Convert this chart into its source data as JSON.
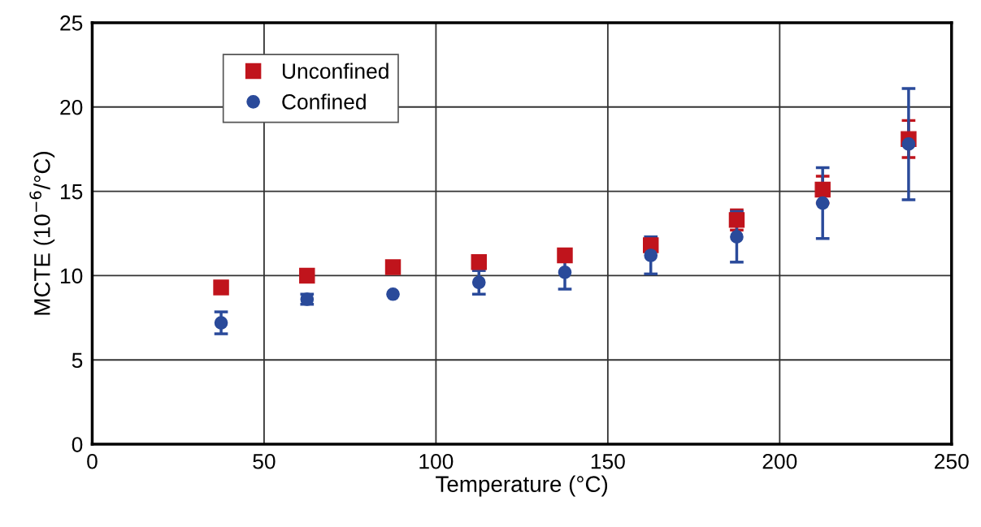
{
  "chart_data": {
    "type": "scatter",
    "xlabel": "Temperature (°C)",
    "ylabel": "MCTE (10$^{−6}$/°C)",
    "x": [
      37.5,
      62.5,
      87.5,
      112.5,
      137.5,
      162.5,
      187.5,
      212.5,
      237.5
    ],
    "series": [
      {
        "name": "Unconfined",
        "color": "#c0141c",
        "marker": "square",
        "values": [
          9.3,
          10.0,
          10.5,
          10.8,
          11.2,
          11.8,
          13.3,
          15.1,
          18.1
        ],
        "errors": [
          null,
          null,
          null,
          null,
          null,
          0.3,
          0.6,
          0.8,
          1.1
        ]
      },
      {
        "name": "Confined",
        "color": "#2a4a9a",
        "marker": "circle",
        "values": [
          7.2,
          8.6,
          8.9,
          9.6,
          10.2,
          11.2,
          12.3,
          14.3,
          17.8
        ],
        "errors": [
          0.65,
          0.3,
          null,
          0.7,
          1.0,
          1.1,
          1.5,
          2.1,
          3.3
        ]
      }
    ],
    "xlim": [
      0,
      250
    ],
    "ylim": [
      0,
      25
    ],
    "xticks": [
      0,
      50,
      100,
      150,
      200,
      250
    ],
    "yticks": [
      0,
      5,
      10,
      15,
      20,
      25
    ],
    "grid": true,
    "legend": "top left"
  }
}
